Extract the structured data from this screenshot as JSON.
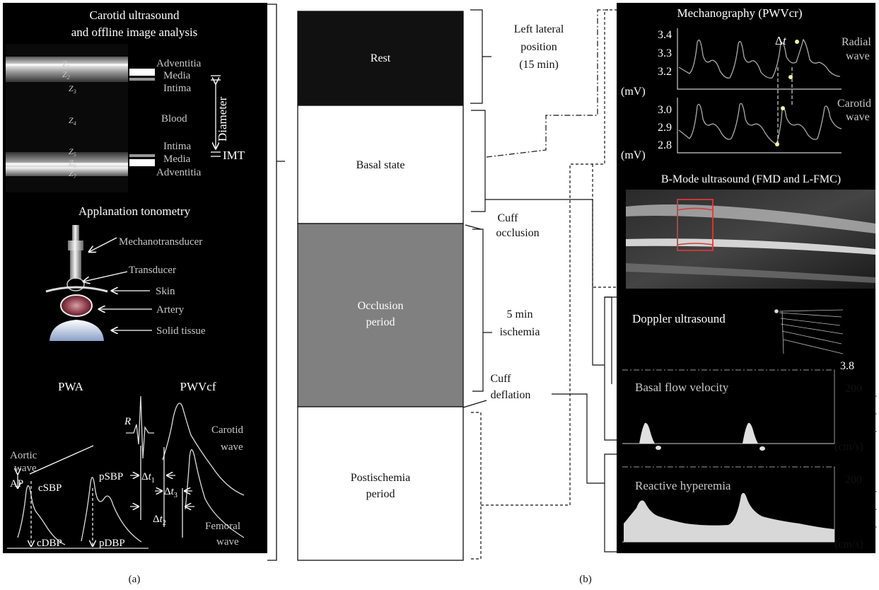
{
  "panel_a": {
    "caption": "(a)",
    "carotid": {
      "title_line1": "Carotid ultrasound",
      "title_line2": "and offline image analysis",
      "layer_labels": [
        "Adventitia",
        "Media",
        "Intima",
        "Blood",
        "Intima",
        "Media",
        "Adventitia"
      ],
      "zone_labels": [
        "Z",
        "Z",
        "Z",
        "Z",
        "Z",
        "Z",
        "Z"
      ],
      "zone_subscripts": [
        "1",
        "2",
        "3",
        "4",
        "5",
        "6",
        "7"
      ],
      "diameter_label": "Diameter",
      "imt_label": "IMT"
    },
    "tonometry": {
      "title": "Applanation tonometry",
      "labels": [
        "Mechanotransducer",
        "Transducer",
        "Skin",
        "Artery",
        "Solid tissue"
      ]
    },
    "pwa": {
      "title": "PWA",
      "aortic_wave": [
        "Aortic",
        "wave"
      ],
      "ap": "AP",
      "csbp": "cSBP",
      "cdbp": "cDBP",
      "psbp": "pSBP",
      "pdbp": "pDBP"
    },
    "pwvcf": {
      "title": "PWVcf",
      "r_label": "R",
      "carotid_wave": [
        "Carotid",
        "wave"
      ],
      "femoral_wave": [
        "Femoral",
        "wave"
      ],
      "delta": "Δ",
      "t_label": "t",
      "t_subs": [
        "1",
        "2",
        "3"
      ]
    }
  },
  "panel_b": {
    "caption": "(b)",
    "phases": [
      {
        "label_lines": [
          "Rest"
        ],
        "color": "#111111"
      },
      {
        "label_lines": [
          "Basal state"
        ],
        "color": "#ffffff"
      },
      {
        "label_lines": [
          "Occlusion",
          "period"
        ],
        "color": "#808080"
      },
      {
        "label_lines": [
          "Postischemia",
          "period"
        ],
        "color": "#ffffff"
      }
    ],
    "annotations": {
      "rest": [
        "Left lateral",
        "position",
        "(15 min)"
      ],
      "cuff_occlusion": [
        "Cuff",
        "occlusion"
      ],
      "ischemia": [
        "5 min",
        "ischemia"
      ],
      "cuff_deflation": [
        "Cuff",
        "deflation"
      ]
    },
    "mechanography": {
      "title": "Mechanography (PWVcr)",
      "radial_ticks": [
        "3.4",
        "3.3",
        "3.2"
      ],
      "carotid_ticks": [
        "3.0",
        "2.9",
        "2.8"
      ],
      "unit": "(mV)",
      "radial_wave": [
        "Radial",
        "wave"
      ],
      "carotid_wave": [
        "Carotid",
        "wave"
      ],
      "delta": "Δ",
      "t_label": "t"
    },
    "bmode": {
      "title": "B-Mode ultrasound (FMD and L-FMC)"
    },
    "doppler": {
      "title": "Doppler ultrasound",
      "value": "3.8",
      "basal_label": "Basal flow velocity",
      "hyperemia_label": "Reactive hyperemia",
      "scale_top": "200",
      "unit": "(cm/s)"
    }
  }
}
